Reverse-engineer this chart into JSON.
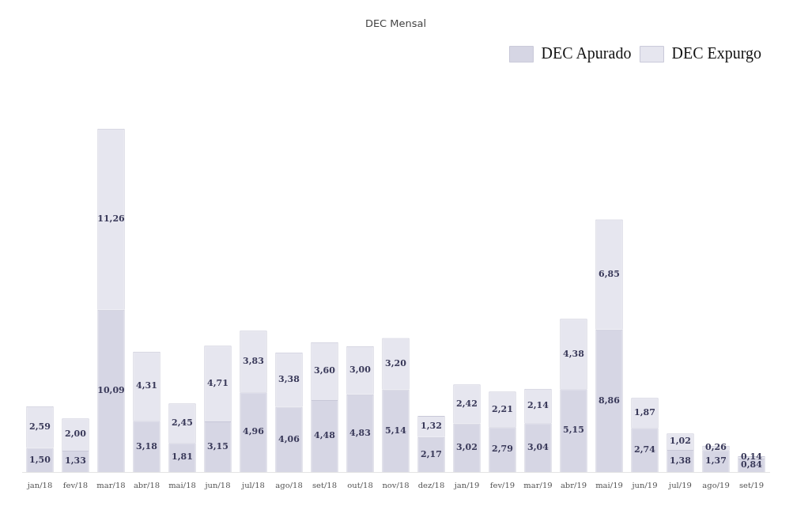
{
  "chart_data": {
    "type": "bar",
    "title": "DEC Mensal",
    "stacked": true,
    "legend": "top right",
    "categories": [
      "jan/18",
      "fev/18",
      "mar/18",
      "abr/18",
      "mai/18",
      "jun/18",
      "jul/18",
      "ago/18",
      "set/18",
      "out/18",
      "nov/18",
      "dez/18",
      "jan/19",
      "fev/19",
      "mar/19",
      "abr/19",
      "mai/19",
      "jun/19",
      "jul/19",
      "ago/19",
      "set/19"
    ],
    "series": [
      {
        "name": "DEC Apurado",
        "color": "#d6d6e4",
        "values": [
          1.5,
          1.33,
          10.09,
          3.18,
          1.81,
          3.15,
          4.96,
          4.06,
          4.48,
          4.83,
          5.14,
          2.17,
          3.02,
          2.79,
          3.04,
          5.15,
          8.86,
          2.74,
          1.38,
          1.37,
          0.84
        ],
        "value_labels": [
          "1,50",
          "1,33",
          "10,09",
          "3,18",
          "1,81",
          "3,15",
          "4,96",
          "4,06",
          "4,48",
          "4,83",
          "5,14",
          "2,17",
          "3,02",
          "2,79",
          "3,04",
          "5,15",
          "8,86",
          "2,74",
          "1,38",
          "1,37",
          "0,84"
        ]
      },
      {
        "name": "DEC Expurgo",
        "color": "#e6e6ef",
        "values": [
          2.59,
          2.0,
          11.26,
          4.31,
          2.45,
          4.71,
          3.83,
          3.38,
          3.6,
          3.0,
          3.2,
          1.32,
          2.42,
          2.21,
          2.14,
          4.38,
          6.85,
          1.87,
          1.02,
          0.26,
          0.14
        ],
        "value_labels": [
          "2,59",
          "2,00",
          "11,26",
          "4,31",
          "2,45",
          "4,71",
          "3,83",
          "3,38",
          "3,60",
          "3,00",
          "3,20",
          "1,32",
          "2,42",
          "2,21",
          "2,14",
          "4,38",
          "6,85",
          "1,87",
          "1,02",
          "0,26",
          "0,14"
        ]
      }
    ]
  }
}
